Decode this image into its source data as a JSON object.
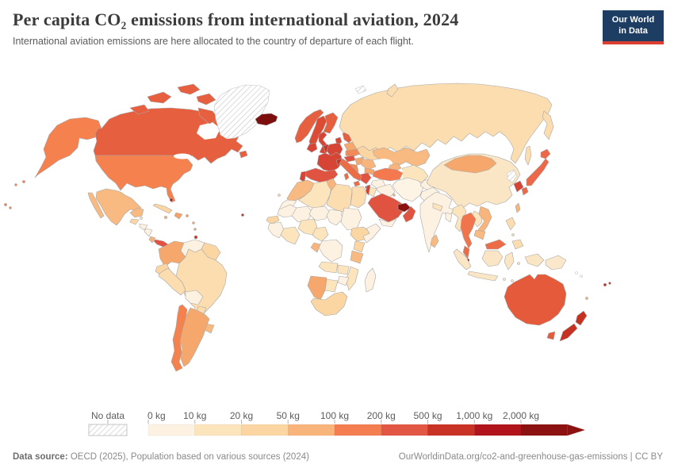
{
  "header": {
    "title": "Per capita CO₂ emissions from international aviation, 2024",
    "subtitle": "International aviation emissions are here allocated to the country of departure of each flight."
  },
  "logo": {
    "line1": "Our World",
    "line2": "in Data",
    "bg": "#1d3d63",
    "accent": "#dc3e32"
  },
  "legend": {
    "no_data_label": "No data",
    "tick_labels": [
      "0 kg",
      "10 kg",
      "20 kg",
      "50 kg",
      "100 kg",
      "200 kg",
      "500 kg",
      "1,000 kg",
      "2,000 kg"
    ],
    "bin_colors": [
      "#fdf2e1",
      "#fce4bc",
      "#fbd6a3",
      "#f8b47b",
      "#f47e50",
      "#e25743",
      "#c93326",
      "#b2141b",
      "#8c1211"
    ],
    "arrow_color": "#8c1211",
    "label_color": "#5d5d5d",
    "tick_color": "#b3b3b3"
  },
  "footer": {
    "source_label": "Data source:",
    "source_text": " OECD (2025), Population based on various sources (2024)",
    "right_text": "OurWorldinData.org/co2-and-greenhouse-gas-emissions | CC BY"
  },
  "chart_data": {
    "type": "choropleth_map",
    "title": "Per capita CO₂ emissions from international aviation, 2024",
    "unit": "kg CO₂ per person",
    "bin_edges_kg": [
      0,
      10,
      20,
      50,
      100,
      200,
      500,
      1000,
      2000
    ],
    "legend_labels": [
      "No data",
      "0 kg",
      "10 kg",
      "20 kg",
      "50 kg",
      "100 kg",
      "200 kg",
      "500 kg",
      "1,000 kg",
      "2,000 kg"
    ],
    "no_data_regions": [
      "greenland",
      "north-korea",
      "svalbard",
      "solomon-islands"
    ],
    "highest_regions": [
      "iceland",
      "qatar-uae",
      "singapore"
    ],
    "legend_position": "bottom"
  },
  "map": {
    "border_color": "#a8a8a8",
    "hatch_line_color": "#cccccc",
    "hatch_border_color": "#c4c4c4",
    "ocean_color": "#ffffff",
    "countries": {
      "usa": "#f5814f",
      "bermuda": "#c93326",
      "canada": "#e6603f",
      "greenland": "hatch",
      "mexico": "#f8ba80",
      "guatemala": "#fbd6a3",
      "belize": "#fce4bc",
      "honduras": "#fdf2e1",
      "nicaragua": "#fdf2e1",
      "costa-rica": "#f8b47b",
      "panama": "#e05341",
      "cuba": "#fbd6a3",
      "jamaica": "#f8b47b",
      "hispaniola": "#f5a167",
      "puerto-rico": "#f5a167",
      "bahamas": "#b2141b",
      "lesser-antilles": "#f5a167",
      "trinidad": "#c93326",
      "colombia": "#f6a76c",
      "venezuela": "#fdf2e1",
      "guyana-suriname": "#fbd6a3",
      "ecuador": "#fbd6a3",
      "peru": "#fbddb0",
      "brazil": "#fbddb0",
      "bolivia": "#fdf2e1",
      "paraguay": "#fbddb0",
      "uruguay": "#f8ba80",
      "argentina": "#f6a76c",
      "chile": "#f5814f",
      "iceland": "#7c0e0d",
      "norway": "#e6603f",
      "sweden": "#dc4c34",
      "finland": "#e6603f",
      "denmark": "#d54434",
      "uk": "#d54434",
      "ireland": "#d54434",
      "benelux": "#c93326",
      "germany": "#d54434",
      "france": "#d54434",
      "spain": "#e05341",
      "portugal": "#d54434",
      "switzerland": "#c93326",
      "austria": "#e05341",
      "italy": "#ec6c46",
      "czech-slovakia": "#f28a58",
      "poland": "#f6a76c",
      "baltics": "#e6603f",
      "belarus": "#fce4bc",
      "ukraine": "#fbd6a3",
      "romania": "#f8b47b",
      "hungary": "#f6a76c",
      "balkans": "#f28a58",
      "bulgaria": "#f6a76c",
      "greece": "#e05341",
      "turkey": "#f4794e",
      "russia": "#fbddb0",
      "svalbard": "hatch",
      "kazakhstan": "#f8ba80",
      "central-asia": "#fce4bc",
      "caucasus": "#f8b47b",
      "iran": "#fdf4e6",
      "iraq": "#fdf2e1",
      "syria": "#fdf2e1",
      "israel": "#d54434",
      "jordan": "#fce4bc",
      "saudi-arabia": "#e05341",
      "kuwait": "#f8b47b",
      "qatar-uae": "#8c1211",
      "oman": "#e05341",
      "yemen": "#fdf2e1",
      "afghanistan": "#fdf2e1",
      "pakistan": "#fdf2e1",
      "india": "#fdf2e1",
      "nepal": "#fce4bc",
      "bangladesh": "#fdf2e1",
      "sri-lanka": "#f8ba80",
      "china": "#fae5c4",
      "mongolia": "#f6a76c",
      "north-korea": "hatch",
      "south-korea": "#d54434",
      "japan": "#ec6848",
      "taiwan": "#f8b47b",
      "myanmar": "#fce4bc",
      "laos": "#fce4bc",
      "thailand": "#f0744c",
      "vietnam": "#f8b47b",
      "cambodia": "#f8ba80",
      "malaysia": "#ec6c46",
      "singapore": "#8c1211",
      "indonesia": "#fae5c4",
      "philippines": "#fbddb0",
      "papua-new-guinea": "#fbe8cc",
      "solomon-islands": "hatch",
      "fiji": "#c93326",
      "new-caledonia": "#f8b47b",
      "australia": "#e55a3a",
      "new-zealand": "#c63222",
      "morocco": "#f8ba80",
      "western-sahara": "#fdf2e1",
      "canary-islands": "#fbd6a3",
      "algeria": "#fce4bc",
      "tunisia": "#f8b47b",
      "libya": "#fbddb0",
      "egypt": "#fbddb0",
      "mauritania": "#fdf2e1",
      "mali": "#fdf2e1",
      "niger": "#fdf2e1",
      "chad": "#fdf2e1",
      "sudan": "#fdf2e1",
      "senegal": "#fbd6a3",
      "guinea-region": "#fdf2e1",
      "ivory-ghana": "#fce4bc",
      "nigeria": "#fce4bc",
      "cameroon": "#fce4bc",
      "ethiopia": "#fbd6a3",
      "somalia": "#fdf2e1",
      "kenya": "#fbd6a3",
      "tanzania": "#f8ba80",
      "drc": "#fdf2e1",
      "gabon": "#f8b47b",
      "angola": "#fce4bc",
      "zambia": "#fce4bc",
      "mozambique": "#fce4bc",
      "zimbabwe": "#fdf2e1",
      "namibia": "#f6a76c",
      "botswana": "#fce4bc",
      "south-africa": "#fbd6a3",
      "madagascar": "#fdf2e1"
    }
  }
}
